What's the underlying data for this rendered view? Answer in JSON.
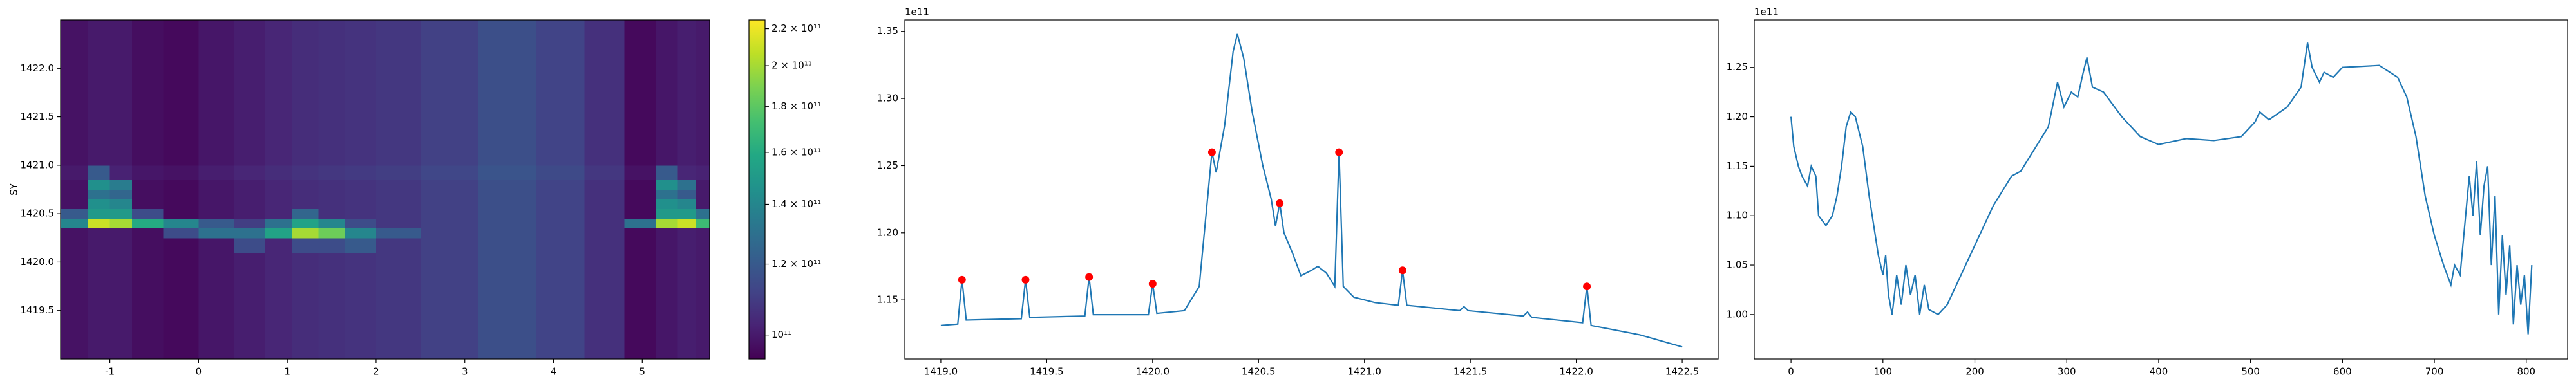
{
  "chart_data": [
    {
      "type": "heatmap",
      "ylabel": "SY",
      "x": [
        -1.4,
        -1.1,
        -0.9,
        -0.6,
        -0.2,
        0.2,
        0.6,
        0.9,
        1.2,
        1.5,
        1.8,
        2.2,
        2.8,
        3.5,
        4.1,
        4.6,
        5.0,
        5.3,
        5.5,
        5.7
      ],
      "y": [
        1419.2,
        1419.6,
        1420.0,
        1420.2,
        1420.3,
        1420.4,
        1420.5,
        1420.6,
        1420.7,
        1420.8,
        1420.9,
        1421.1,
        1421.5,
        1421.9,
        1422.3
      ],
      "z": [
        [
          98000000000.0,
          100000000000.0,
          100000000000.0,
          97000000000.0,
          96000000000.0,
          99000000000.0,
          101000000000.0,
          103000000000.0,
          105000000000.0,
          106000000000.0,
          107000000000.0,
          108000000000.0,
          111000000000.0,
          116000000000.0,
          112000000000.0,
          106000000000.0,
          96000000000.0,
          99000000000.0,
          101000000000.0,
          100000000000.0
        ],
        [
          98000000000.0,
          100000000000.0,
          100000000000.0,
          97000000000.0,
          96000000000.0,
          99000000000.0,
          101000000000.0,
          103000000000.0,
          105000000000.0,
          106000000000.0,
          107000000000.0,
          108000000000.0,
          111000000000.0,
          116000000000.0,
          112000000000.0,
          106000000000.0,
          96000000000.0,
          99000000000.0,
          101000000000.0,
          100000000000.0
        ],
        [
          98000000000.0,
          100000000000.0,
          100000000000.0,
          97000000000.0,
          96000000000.0,
          99000000000.0,
          101000000000.0,
          103000000000.0,
          105000000000.0,
          106000000000.0,
          107000000000.0,
          108000000000.0,
          111000000000.0,
          116000000000.0,
          112000000000.0,
          106000000000.0,
          96000000000.0,
          99000000000.0,
          101000000000.0,
          100000000000.0
        ],
        [
          98000000000.0,
          100000000000.0,
          100000000000.0,
          97000000000.0,
          96000000000.0,
          99000000000.0,
          115000000000.0,
          103000000000.0,
          115000000000.0,
          115000000000.0,
          120000000000.0,
          108000000000.0,
          111000000000.0,
          116000000000.0,
          112000000000.0,
          106000000000.0,
          96000000000.0,
          99000000000.0,
          101000000000.0,
          100000000000.0
        ],
        [
          98000000000.0,
          100000000000.0,
          100000000000.0,
          97000000000.0,
          115000000000.0,
          130000000000.0,
          130000000000.0,
          155000000000.0,
          200000000000.0,
          185000000000.0,
          140000000000.0,
          120000000000.0,
          111000000000.0,
          116000000000.0,
          112000000000.0,
          106000000000.0,
          96000000000.0,
          99000000000.0,
          101000000000.0,
          100000000000.0
        ],
        [
          140000000000.0,
          210000000000.0,
          200000000000.0,
          160000000000.0,
          140000000000.0,
          120000000000.0,
          110000000000.0,
          130000000000.0,
          155000000000.0,
          140000000000.0,
          115000000000.0,
          108000000000.0,
          111000000000.0,
          116000000000.0,
          112000000000.0,
          106000000000.0,
          130000000000.0,
          200000000000.0,
          210000000000.0,
          170000000000.0
        ],
        [
          120000000000.0,
          150000000000.0,
          150000000000.0,
          115000000000.0,
          96000000000.0,
          99000000000.0,
          101000000000.0,
          103000000000.0,
          125000000000.0,
          106000000000.0,
          107000000000.0,
          108000000000.0,
          111000000000.0,
          116000000000.0,
          112000000000.0,
          106000000000.0,
          96000000000.0,
          150000000000.0,
          150000000000.0,
          130000000000.0
        ],
        [
          98000000000.0,
          145000000000.0,
          140000000000.0,
          97000000000.0,
          96000000000.0,
          99000000000.0,
          101000000000.0,
          103000000000.0,
          105000000000.0,
          106000000000.0,
          107000000000.0,
          108000000000.0,
          111000000000.0,
          116000000000.0,
          112000000000.0,
          106000000000.0,
          96000000000.0,
          145000000000.0,
          140000000000.0,
          100000000000.0
        ],
        [
          98000000000.0,
          130000000000.0,
          125000000000.0,
          97000000000.0,
          96000000000.0,
          99000000000.0,
          101000000000.0,
          103000000000.0,
          105000000000.0,
          106000000000.0,
          107000000000.0,
          108000000000.0,
          111000000000.0,
          116000000000.0,
          112000000000.0,
          106000000000.0,
          96000000000.0,
          130000000000.0,
          120000000000.0,
          100000000000.0
        ],
        [
          98000000000.0,
          145000000000.0,
          135000000000.0,
          97000000000.0,
          96000000000.0,
          99000000000.0,
          101000000000.0,
          103000000000.0,
          105000000000.0,
          106000000000.0,
          107000000000.0,
          108000000000.0,
          111000000000.0,
          116000000000.0,
          112000000000.0,
          106000000000.0,
          96000000000.0,
          145000000000.0,
          130000000000.0,
          100000000000.0
        ],
        [
          100000000000.0,
          120000000000.0,
          102000000000.0,
          99000000000.0,
          98000000000.0,
          101000000000.0,
          103000000000.0,
          105000000000.0,
          107000000000.0,
          108000000000.0,
          109000000000.0,
          110000000000.0,
          113000000000.0,
          118000000000.0,
          114000000000.0,
          108000000000.0,
          98000000000.0,
          120000000000.0,
          103000000000.0,
          102000000000.0
        ],
        [
          98000000000.0,
          100000000000.0,
          100000000000.0,
          97000000000.0,
          96000000000.0,
          99000000000.0,
          101000000000.0,
          103000000000.0,
          105000000000.0,
          106000000000.0,
          107000000000.0,
          108000000000.0,
          111000000000.0,
          116000000000.0,
          112000000000.0,
          106000000000.0,
          96000000000.0,
          99000000000.0,
          101000000000.0,
          100000000000.0
        ],
        [
          98000000000.0,
          100000000000.0,
          100000000000.0,
          97000000000.0,
          96000000000.0,
          99000000000.0,
          101000000000.0,
          103000000000.0,
          105000000000.0,
          106000000000.0,
          107000000000.0,
          108000000000.0,
          111000000000.0,
          116000000000.0,
          112000000000.0,
          106000000000.0,
          96000000000.0,
          99000000000.0,
          101000000000.0,
          100000000000.0
        ],
        [
          98000000000.0,
          100000000000.0,
          100000000000.0,
          97000000000.0,
          96000000000.0,
          99000000000.0,
          101000000000.0,
          103000000000.0,
          105000000000.0,
          106000000000.0,
          107000000000.0,
          108000000000.0,
          111000000000.0,
          116000000000.0,
          112000000000.0,
          106000000000.0,
          96000000000.0,
          99000000000.0,
          101000000000.0,
          100000000000.0
        ],
        [
          98000000000.0,
          100000000000.0,
          100000000000.0,
          97000000000.0,
          96000000000.0,
          99000000000.0,
          101000000000.0,
          103000000000.0,
          105000000000.0,
          106000000000.0,
          107000000000.0,
          108000000000.0,
          111000000000.0,
          116000000000.0,
          112000000000.0,
          106000000000.0,
          96000000000.0,
          99000000000.0,
          101000000000.0,
          100000000000.0
        ]
      ],
      "xlim": [
        -1.556,
        5.76
      ],
      "ylim": [
        1419.0,
        1422.5
      ],
      "xticks": [
        -1,
        0,
        1,
        2,
        3,
        4,
        5
      ],
      "yticks": [
        1419.5,
        {
          "value": 1420.0,
          "label": "1420.0"
        },
        1420.5,
        {
          "value": 1421.0,
          "label": "1421.0"
        },
        1421.5,
        {
          "value": 1422.0,
          "label": "1422.0"
        }
      ],
      "colormap": "viridis",
      "colorbar": {
        "scale": "log",
        "lim": [
          94000000000.0,
          225000000000.0
        ],
        "ticks": [
          {
            "value": 100000000000.0,
            "label": "10¹¹"
          },
          {
            "value": 120000000000.0,
            "label": "1.2 × 10¹¹"
          },
          {
            "value": 140000000000.0,
            "label": "1.4 × 10¹¹"
          },
          {
            "value": 160000000000.0,
            "label": "1.6 × 10¹¹"
          },
          {
            "value": 180000000000.0,
            "label": "1.8 × 10¹¹"
          },
          {
            "value": 200000000000.0,
            "label": "2 × 10¹¹"
          },
          {
            "value": 220000000000.0,
            "label": "2.2 × 10¹¹"
          }
        ]
      }
    },
    {
      "type": "line",
      "y_offset_label": "1e11",
      "series": [
        {
          "style": "line",
          "color": "#1f77b4",
          "x": [
            1419.0,
            1419.08,
            1419.1,
            1419.12,
            1419.38,
            1419.4,
            1419.42,
            1419.68,
            1419.7,
            1419.72,
            1419.98,
            1420.0,
            1420.02,
            1420.15,
            1420.22,
            1420.28,
            1420.3,
            1420.34,
            1420.38,
            1420.4,
            1420.43,
            1420.47,
            1420.52,
            1420.56,
            1420.58,
            1420.6,
            1420.62,
            1420.66,
            1420.7,
            1420.75,
            1420.78,
            1420.82,
            1420.86,
            1420.88,
            1420.9,
            1420.95,
            1421.05,
            1421.16,
            1421.18,
            1421.2,
            1421.45,
            1421.47,
            1421.49,
            1421.75,
            1421.77,
            1421.79,
            1422.03,
            1422.05,
            1422.07,
            1422.3,
            1422.5
          ],
          "values": [
            1.131,
            1.132,
            1.165,
            1.135,
            1.136,
            1.165,
            1.137,
            1.138,
            1.167,
            1.139,
            1.139,
            1.162,
            1.14,
            1.142,
            1.16,
            1.26,
            1.245,
            1.28,
            1.335,
            1.348,
            1.33,
            1.29,
            1.25,
            1.225,
            1.205,
            1.222,
            1.2,
            1.185,
            1.168,
            1.172,
            1.175,
            1.17,
            1.16,
            1.26,
            1.16,
            1.152,
            1.148,
            1.146,
            1.172,
            1.146,
            1.142,
            1.145,
            1.142,
            1.138,
            1.141,
            1.137,
            1.133,
            1.16,
            1.131,
            1.124,
            1.115
          ]
        },
        {
          "style": "points",
          "color": "#ff0000",
          "x": [
            1419.1,
            1419.4,
            1419.7,
            1420.0,
            1420.28,
            1420.6,
            1420.88,
            1421.18,
            1422.05
          ],
          "values": [
            1.165,
            1.165,
            1.167,
            1.162,
            1.26,
            1.222,
            1.26,
            1.172,
            1.16
          ]
        }
      ],
      "xlim": [
        1418.83,
        1422.67
      ],
      "ylim": [
        1.106,
        1.3585
      ],
      "xticks": [
        {
          "value": 1419.0,
          "label": "1419.0"
        },
        1419.5,
        {
          "value": 1420.0,
          "label": "1420.0"
        },
        1420.5,
        {
          "value": 1421.0,
          "label": "1421.0"
        },
        1421.5,
        {
          "value": 1422.0,
          "label": "1422.0"
        },
        1422.5
      ],
      "yticks": [
        1.15,
        {
          "value": 1.2,
          "label": "1.20"
        },
        1.25,
        {
          "value": 1.3,
          "label": "1.30"
        },
        1.35
      ]
    },
    {
      "type": "line",
      "y_offset_label": "1e11",
      "series": [
        {
          "style": "line",
          "color": "#1f77b4",
          "x": [
            0,
            3,
            8,
            12,
            18,
            22,
            27,
            30,
            38,
            45,
            50,
            55,
            60,
            65,
            70,
            78,
            85,
            90,
            95,
            100,
            103,
            106,
            110,
            115,
            120,
            125,
            130,
            135,
            140,
            145,
            150,
            160,
            170,
            180,
            200,
            220,
            240,
            250,
            260,
            280,
            290,
            297,
            305,
            312,
            318,
            322,
            328,
            340,
            360,
            380,
            400,
            430,
            460,
            490,
            505,
            510,
            520,
            540,
            555,
            562,
            567,
            575,
            580,
            590,
            600,
            640,
            660,
            670,
            680,
            690,
            700,
            710,
            718,
            722,
            728,
            732,
            738,
            742,
            746,
            750,
            754,
            758,
            762,
            766,
            770,
            774,
            778,
            782,
            786,
            790,
            794,
            798,
            802,
            806
          ],
          "values": [
            1.2,
            1.17,
            1.15,
            1.14,
            1.13,
            1.15,
            1.14,
            1.1,
            1.09,
            1.1,
            1.12,
            1.15,
            1.19,
            1.205,
            1.2,
            1.17,
            1.12,
            1.09,
            1.06,
            1.04,
            1.06,
            1.02,
            1.0,
            1.04,
            1.01,
            1.05,
            1.02,
            1.04,
            1.0,
            1.03,
            1.005,
            1.0,
            1.01,
            1.03,
            1.07,
            1.11,
            1.14,
            1.145,
            1.16,
            1.19,
            1.235,
            1.21,
            1.225,
            1.22,
            1.245,
            1.26,
            1.23,
            1.225,
            1.2,
            1.18,
            1.172,
            1.178,
            1.176,
            1.18,
            1.195,
            1.205,
            1.197,
            1.21,
            1.23,
            1.275,
            1.25,
            1.235,
            1.245,
            1.24,
            1.25,
            1.252,
            1.24,
            1.22,
            1.18,
            1.12,
            1.08,
            1.05,
            1.03,
            1.05,
            1.04,
            1.08,
            1.14,
            1.1,
            1.155,
            1.08,
            1.13,
            1.15,
            1.05,
            1.12,
            1.0,
            1.08,
            1.02,
            1.07,
            0.99,
            1.05,
            1.01,
            1.04,
            0.98,
            1.05
          ]
        }
      ],
      "xlim": [
        -40,
        845
      ],
      "ylim": [
        0.955,
        1.298
      ],
      "xticks": [
        0,
        100,
        200,
        300,
        400,
        500,
        600,
        700,
        800
      ],
      "yticks": [
        {
          "value": 1.0,
          "label": "1.00"
        },
        1.05,
        {
          "value": 1.1,
          "label": "1.10"
        },
        1.15,
        {
          "value": 1.2,
          "label": "1.20"
        },
        1.25
      ]
    }
  ]
}
